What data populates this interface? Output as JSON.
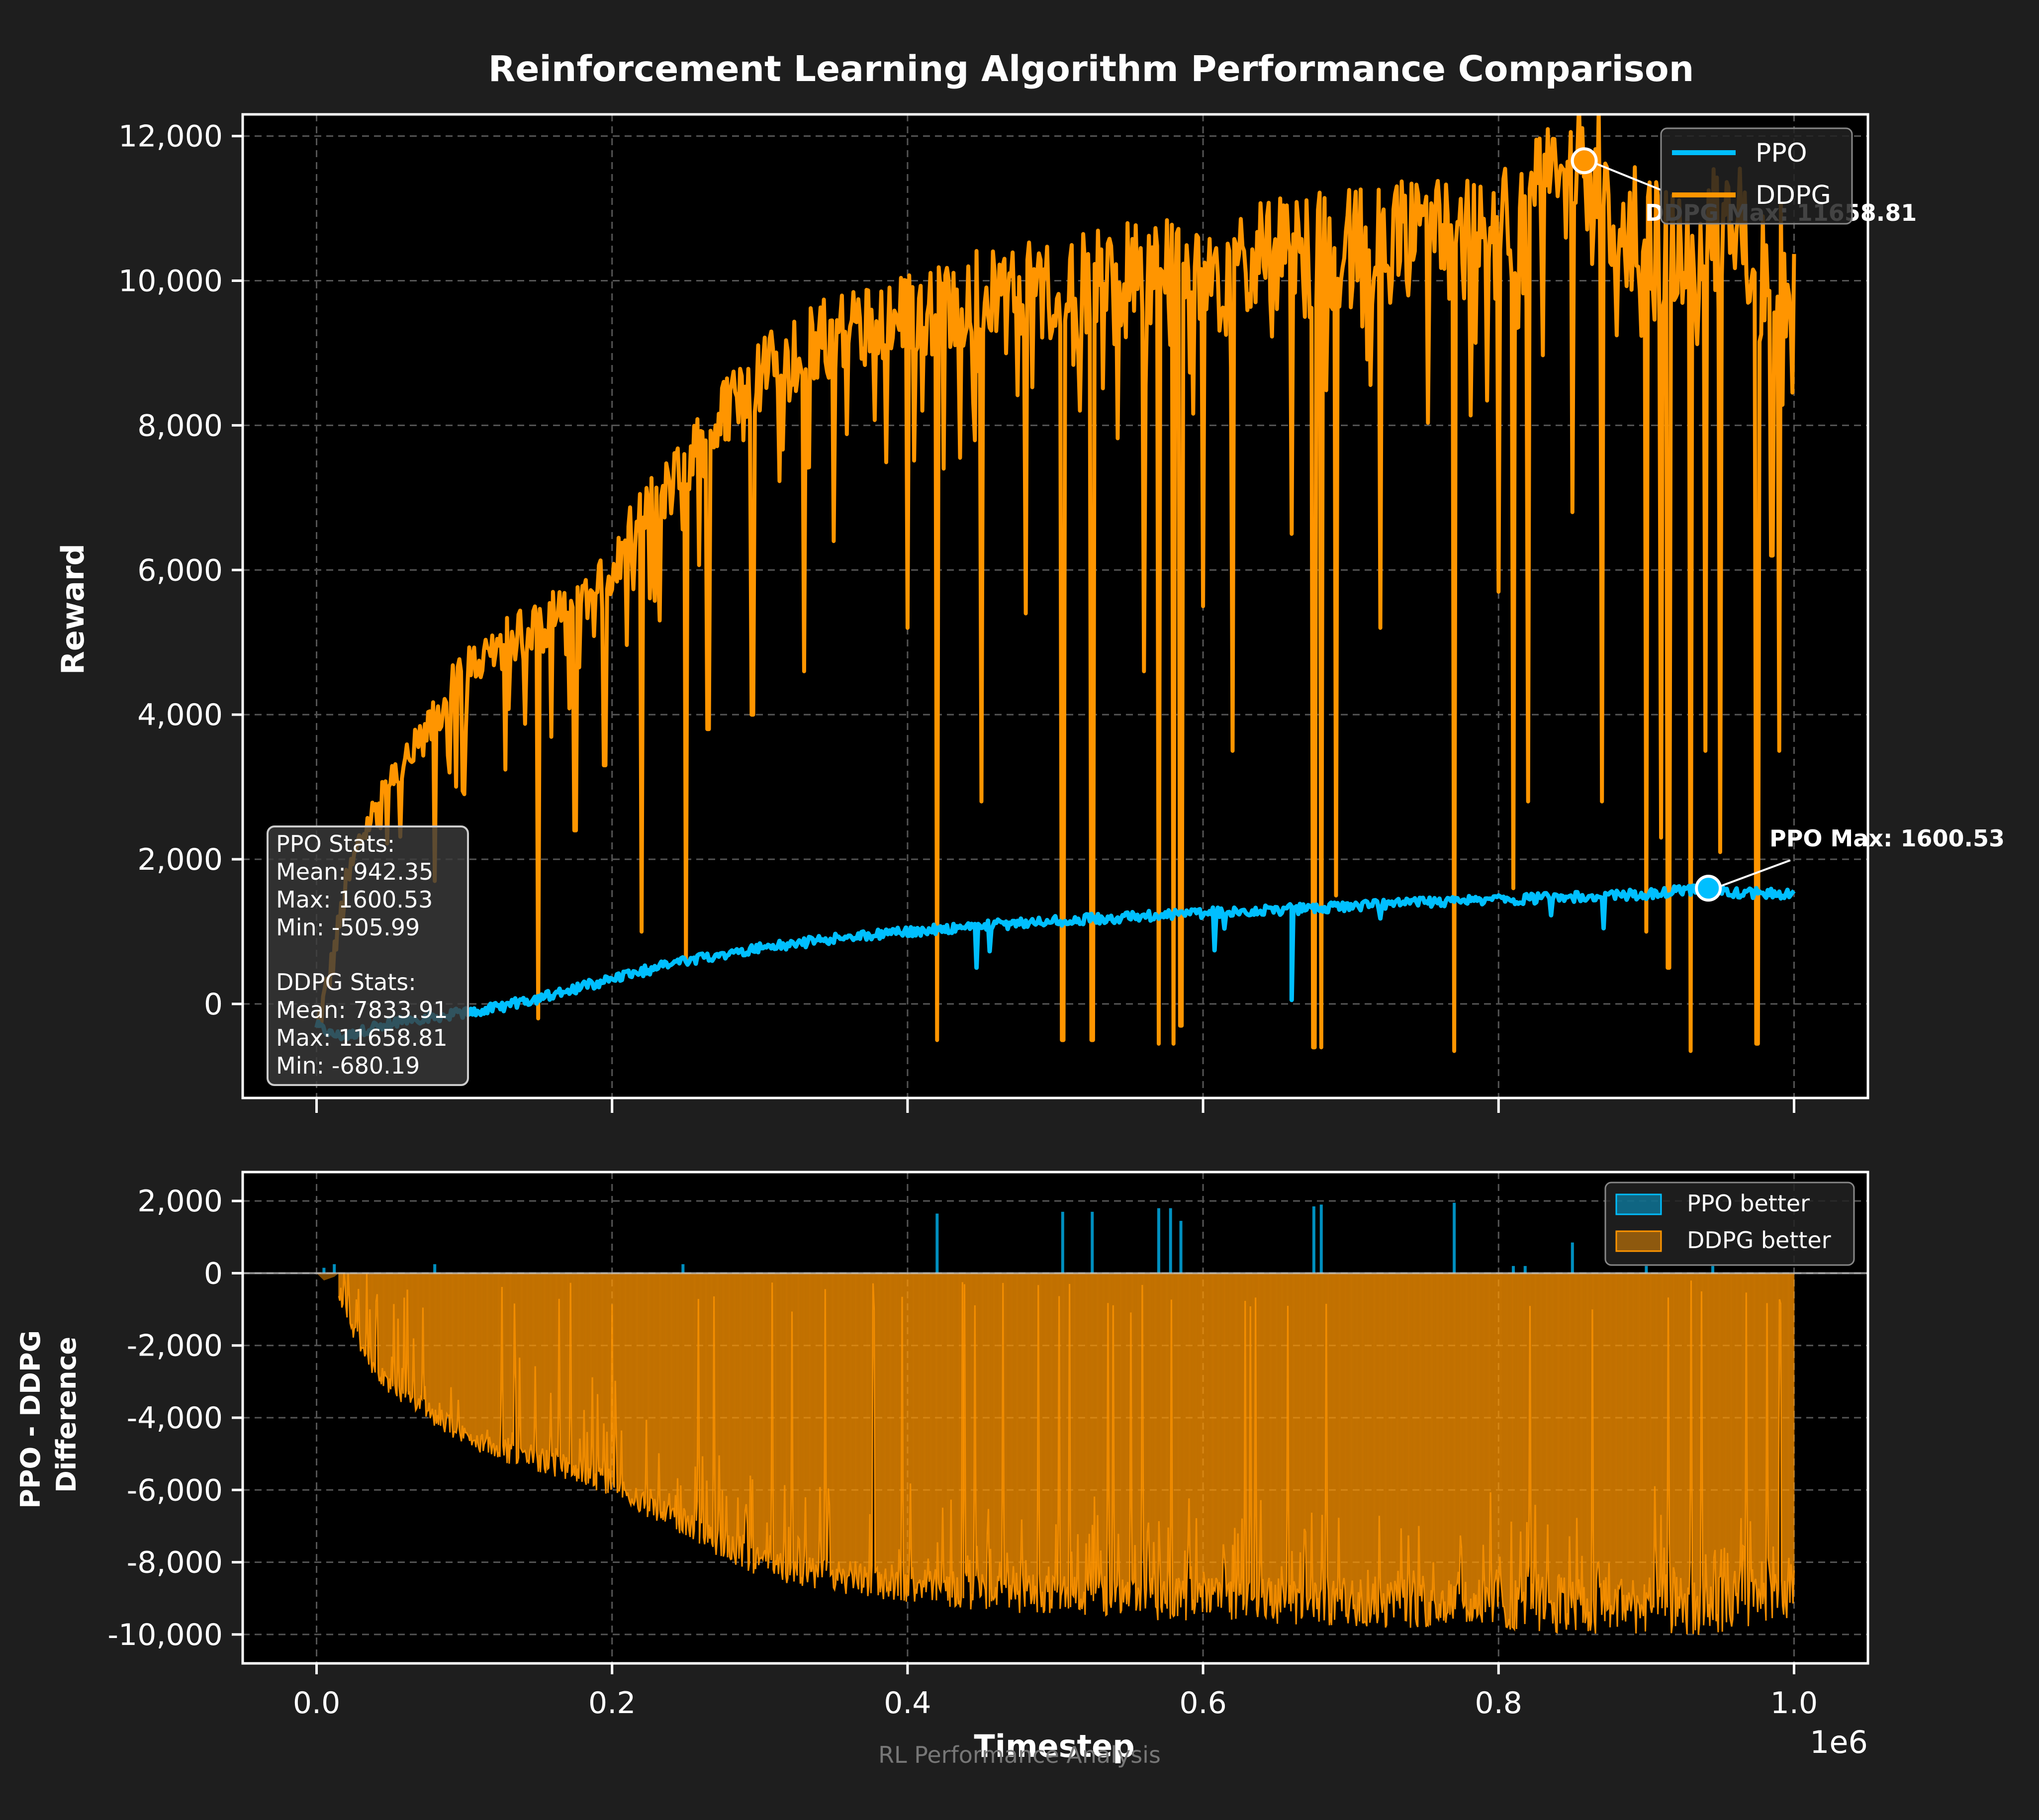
{
  "figure": {
    "title": "Reinforcement Learning Algorithm Performance Comparison",
    "watermark": "RL Performance Analysis",
    "background": "#1e1e1e",
    "plot_background": "#000000"
  },
  "colors": {
    "ppo": "#00bfff",
    "ddpg": "#ff9500",
    "text": "#ffffff",
    "axis": "#ffffff",
    "grid": "#555555"
  },
  "chart_data": [
    {
      "type": "line",
      "title": "Reinforcement Learning Algorithm Performance Comparison",
      "xlabel": "",
      "ylabel": "Reward",
      "xlim": [
        -50000,
        1050000
      ],
      "ylim": [
        -1300,
        12300
      ],
      "x_scale_label": "1e6",
      "yticks": [
        0,
        2000,
        4000,
        6000,
        8000,
        10000,
        12000
      ],
      "ytick_labels": [
        "0",
        "2,000",
        "4,000",
        "6,000",
        "8,000",
        "10,000",
        "12,000"
      ],
      "grid": true,
      "legend_position": "top-right",
      "series": [
        {
          "name": "PPO",
          "color": "#00bfff",
          "x": [
            0,
            10000,
            20000,
            30000,
            40000,
            50000,
            60000,
            70000,
            80000,
            90000,
            100000,
            120000,
            150000,
            200000,
            250000,
            300000,
            350000,
            400000,
            450000,
            500000,
            550000,
            600000,
            650000,
            700000,
            750000,
            800000,
            850000,
            900000,
            942000,
            950000,
            1000000
          ],
          "y": [
            -300,
            -420,
            -450,
            -380,
            -300,
            -260,
            -220,
            -200,
            -180,
            -150,
            -120,
            -60,
            80,
            350,
            600,
            780,
            900,
            1000,
            1080,
            1150,
            1200,
            1260,
            1300,
            1350,
            1400,
            1440,
            1480,
            1520,
            1600.53,
            1540,
            1520
          ],
          "stats": {
            "mean": 942.35,
            "max": 1600.53,
            "min": -505.99
          }
        },
        {
          "name": "DDPG",
          "color": "#ff9500",
          "x": [
            0,
            10000,
            20000,
            30000,
            40000,
            50000,
            60000,
            70000,
            80000,
            90000,
            100000,
            120000,
            150000,
            180000,
            200000,
            220000,
            250000,
            280000,
            300000,
            350000,
            400000,
            450000,
            500000,
            550000,
            600000,
            650000,
            700000,
            750000,
            800000,
            858000,
            900000,
            950000,
            1000000
          ],
          "y": [
            -400,
            500,
            1600,
            2300,
            2700,
            3000,
            3300,
            3600,
            3900,
            4300,
            4600,
            4900,
            5200,
            5600,
            6000,
            6700,
            7400,
            8300,
            8700,
            9300,
            9500,
            9800,
            9900,
            10100,
            10200,
            10300,
            10400,
            10500,
            10500,
            11658.81,
            10400,
            10600,
            10000
          ],
          "stats": {
            "mean": 7833.91,
            "max": 11658.81,
            "min": -680.19
          },
          "dips": [
            [
              80000,
              1700
            ],
            [
              90000,
              3200
            ],
            [
              100000,
              2900
            ],
            [
              150000,
              -200
            ],
            [
              175000,
              2400
            ],
            [
              195000,
              3300
            ],
            [
              220000,
              1000
            ],
            [
              250000,
              600
            ],
            [
              265000,
              3800
            ],
            [
              295000,
              4000
            ],
            [
              330000,
              4600
            ],
            [
              350000,
              6400
            ],
            [
              400000,
              5200
            ],
            [
              420000,
              -500
            ],
            [
              450000,
              2800
            ],
            [
              480000,
              5400
            ],
            [
              505000,
              -500
            ],
            [
              525000,
              -500
            ],
            [
              560000,
              4600
            ],
            [
              570000,
              -550
            ],
            [
              580000,
              -550
            ],
            [
              585000,
              -300
            ],
            [
              600000,
              5500
            ],
            [
              620000,
              3500
            ],
            [
              660000,
              6500
            ],
            [
              675000,
              -600
            ],
            [
              680000,
              -600
            ],
            [
              690000,
              1500
            ],
            [
              720000,
              5200
            ],
            [
              770000,
              -650
            ],
            [
              800000,
              5700
            ],
            [
              810000,
              1600
            ],
            [
              820000,
              2800
            ],
            [
              850000,
              6800
            ],
            [
              870000,
              2800
            ],
            [
              900000,
              1000
            ],
            [
              910000,
              2300
            ],
            [
              915000,
              500
            ],
            [
              930000,
              -650
            ],
            [
              940000,
              3500
            ],
            [
              950000,
              2100
            ],
            [
              975000,
              -550
            ],
            [
              985000,
              6200
            ],
            [
              990000,
              3500
            ]
          ]
        }
      ],
      "annotations": [
        {
          "label": "DDPG Max: 11658.81",
          "x": 858000,
          "y": 11658.81,
          "series": "DDPG"
        },
        {
          "label": "PPO Max: 1600.53",
          "x": 942000,
          "y": 1600.53,
          "series": "PPO"
        }
      ],
      "stats_box": {
        "ppo_heading": "PPO Stats:",
        "ppo_mean": "Mean: 942.35",
        "ppo_max": "Max: 1600.53",
        "ppo_min": "Min: -505.99",
        "ddpg_heading": "DDPG Stats:",
        "ddpg_mean": "Mean: 7833.91",
        "ddpg_max": "Max: 11658.81",
        "ddpg_min": "Min: -680.19"
      }
    },
    {
      "type": "area",
      "title": "",
      "xlabel": "Timestep",
      "ylabel": "PPO - DDPG\nDifference",
      "xlim": [
        -50000,
        1050000
      ],
      "ylim": [
        -10800,
        2800
      ],
      "x_scale_label": "1e6",
      "xticks": [
        0,
        200000,
        400000,
        600000,
        800000,
        1000000
      ],
      "xtick_labels": [
        "0.0",
        "0.2",
        "0.4",
        "0.6",
        "0.8",
        "1.0"
      ],
      "yticks": [
        -10000,
        -8000,
        -6000,
        -4000,
        -2000,
        0,
        2000
      ],
      "ytick_labels": [
        "-10,000",
        "-8,000",
        "-6,000",
        "-4,000",
        "-2,000",
        "0",
        "2,000"
      ],
      "grid": true,
      "legend_position": "top-right",
      "series": [
        {
          "name": "PPO better",
          "color": "#00bfff",
          "spikes": [
            [
              5000,
              150
            ],
            [
              12000,
              250
            ],
            [
              80000,
              250
            ],
            [
              248000,
              250
            ],
            [
              420000,
              1650
            ],
            [
              505000,
              1700
            ],
            [
              525000,
              1700
            ],
            [
              570000,
              1800
            ],
            [
              578000,
              1800
            ],
            [
              585000,
              1450
            ],
            [
              675000,
              1850
            ],
            [
              680000,
              1900
            ],
            [
              770000,
              1950
            ],
            [
              810000,
              200
            ],
            [
              818000,
              200
            ],
            [
              850000,
              850
            ],
            [
              900000,
              200
            ],
            [
              945000,
              200
            ]
          ]
        },
        {
          "name": "DDPG better",
          "color": "#ff9500",
          "x": [
            15000,
            20000,
            30000,
            40000,
            50000,
            60000,
            70000,
            80000,
            90000,
            100000,
            120000,
            150000,
            180000,
            200000,
            220000,
            250000,
            280000,
            300000,
            350000,
            400000,
            450000,
            500000,
            550000,
            600000,
            650000,
            700000,
            750000,
            800000,
            850000,
            900000,
            950000,
            1000000
          ],
          "y": [
            -500,
            -1200,
            -2000,
            -2700,
            -3100,
            -3400,
            -3700,
            -3950,
            -4200,
            -4500,
            -4850,
            -5150,
            -5500,
            -5800,
            -6300,
            -6900,
            -7600,
            -8000,
            -8400,
            -8600,
            -8800,
            -8900,
            -9000,
            -9000,
            -9050,
            -9100,
            -9100,
            -9100,
            -9200,
            -9150,
            -9200,
            -8600
          ]
        }
      ]
    }
  ]
}
